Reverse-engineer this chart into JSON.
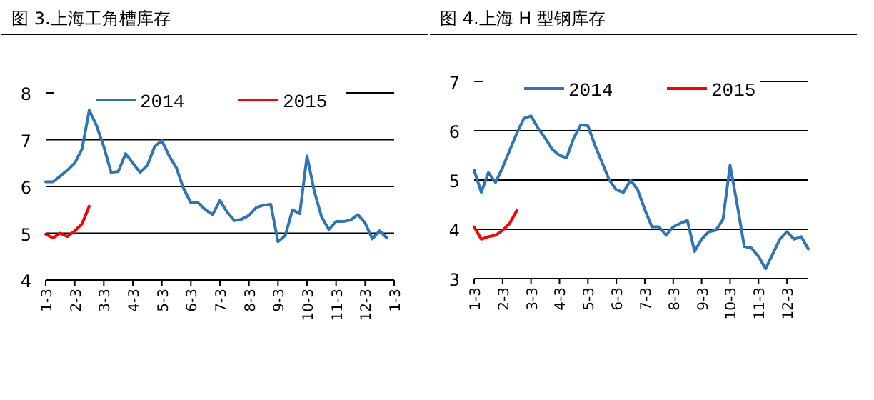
{
  "chart_data": [
    {
      "type": "line",
      "title": "图 3.上海工角槽库存",
      "ylim": [
        4,
        8
      ],
      "yticks": [
        4,
        5,
        6,
        7,
        8
      ],
      "categories": [
        "1-3",
        null,
        null,
        null,
        "2-3",
        null,
        null,
        null,
        "3-3",
        null,
        null,
        null,
        "4-3",
        null,
        null,
        null,
        "5-3",
        null,
        null,
        null,
        "6-3",
        null,
        null,
        null,
        "7-3",
        null,
        null,
        null,
        "8-3",
        null,
        null,
        null,
        "9-3",
        null,
        null,
        null,
        "10-3",
        null,
        null,
        null,
        "11-3",
        null,
        null,
        null,
        "12-3",
        null,
        null,
        null,
        "1-3"
      ],
      "grid": "y",
      "legend": "top",
      "marker": "none",
      "line_style": "solid",
      "series": [
        {
          "name": "2014",
          "color": "#2e75b6",
          "values": [
            6.1,
            6.1,
            6.22,
            6.35,
            6.5,
            6.8,
            7.63,
            7.3,
            6.85,
            6.3,
            6.32,
            6.7,
            6.5,
            6.3,
            6.45,
            6.85,
            6.98,
            6.65,
            6.4,
            5.95,
            5.65,
            5.65,
            5.5,
            5.4,
            5.7,
            5.45,
            5.27,
            5.3,
            5.38,
            5.55,
            5.6,
            5.62,
            4.82,
            4.95,
            5.5,
            5.42,
            6.65,
            5.9,
            5.35,
            5.08,
            5.25,
            5.25,
            5.28,
            5.4,
            5.22,
            4.88,
            5.05,
            4.9,
            null
          ]
        },
        {
          "name": "2015",
          "color": "#ff0000",
          "values": [
            4.98,
            4.9,
            5.0,
            4.93,
            5.05,
            5.2,
            5.58,
            null,
            null,
            null,
            null,
            null,
            null,
            null,
            null,
            null,
            null,
            null,
            null,
            null,
            null,
            null,
            null,
            null,
            null,
            null,
            null,
            null,
            null,
            null,
            null,
            null,
            null,
            null,
            null,
            null,
            null,
            null,
            null,
            null,
            null,
            null,
            null,
            null,
            null,
            null,
            null,
            null,
            null
          ]
        }
      ]
    },
    {
      "type": "line",
      "title": "图 4.上海 H 型钢库存",
      "ylim": [
        3,
        7
      ],
      "yticks": [
        3,
        4,
        5,
        6,
        7
      ],
      "categories": [
        "1-3",
        null,
        null,
        null,
        "2-3",
        null,
        null,
        null,
        "3-3",
        null,
        null,
        null,
        "4-3",
        null,
        null,
        null,
        "5-3",
        null,
        null,
        null,
        "6-3",
        null,
        null,
        null,
        "7-3",
        null,
        null,
        null,
        "8-3",
        null,
        null,
        null,
        "9-3",
        null,
        null,
        null,
        "10-3",
        null,
        null,
        null,
        "11-3",
        null,
        null,
        null,
        "12-3",
        null,
        null,
        null
      ],
      "grid": "y",
      "legend": "top",
      "marker": "none",
      "line_style": "solid",
      "series": [
        {
          "name": "2014",
          "color": "#2e75b6",
          "values": [
            5.2,
            4.75,
            5.15,
            4.95,
            5.25,
            5.6,
            5.95,
            6.25,
            6.3,
            6.05,
            5.85,
            5.62,
            5.5,
            5.45,
            5.85,
            6.12,
            6.1,
            5.7,
            5.35,
            5.0,
            4.8,
            4.75,
            5.0,
            4.8,
            4.4,
            4.05,
            4.05,
            3.88,
            4.05,
            4.12,
            4.18,
            3.55,
            3.8,
            3.95,
            3.98,
            4.2,
            5.3,
            4.5,
            3.65,
            3.62,
            3.45,
            3.2,
            3.5,
            3.8,
            3.95,
            3.8,
            3.85,
            3.6
          ]
        },
        {
          "name": "2015",
          "color": "#ff0000",
          "values": [
            4.05,
            3.8,
            3.85,
            3.88,
            3.98,
            4.12,
            4.38,
            null,
            null,
            null,
            null,
            null,
            null,
            null,
            null,
            null,
            null,
            null,
            null,
            null,
            null,
            null,
            null,
            null,
            null,
            null,
            null,
            null,
            null,
            null,
            null,
            null,
            null,
            null,
            null,
            null,
            null,
            null,
            null,
            null,
            null,
            null,
            null,
            null,
            null,
            null,
            null,
            null
          ]
        }
      ]
    }
  ]
}
